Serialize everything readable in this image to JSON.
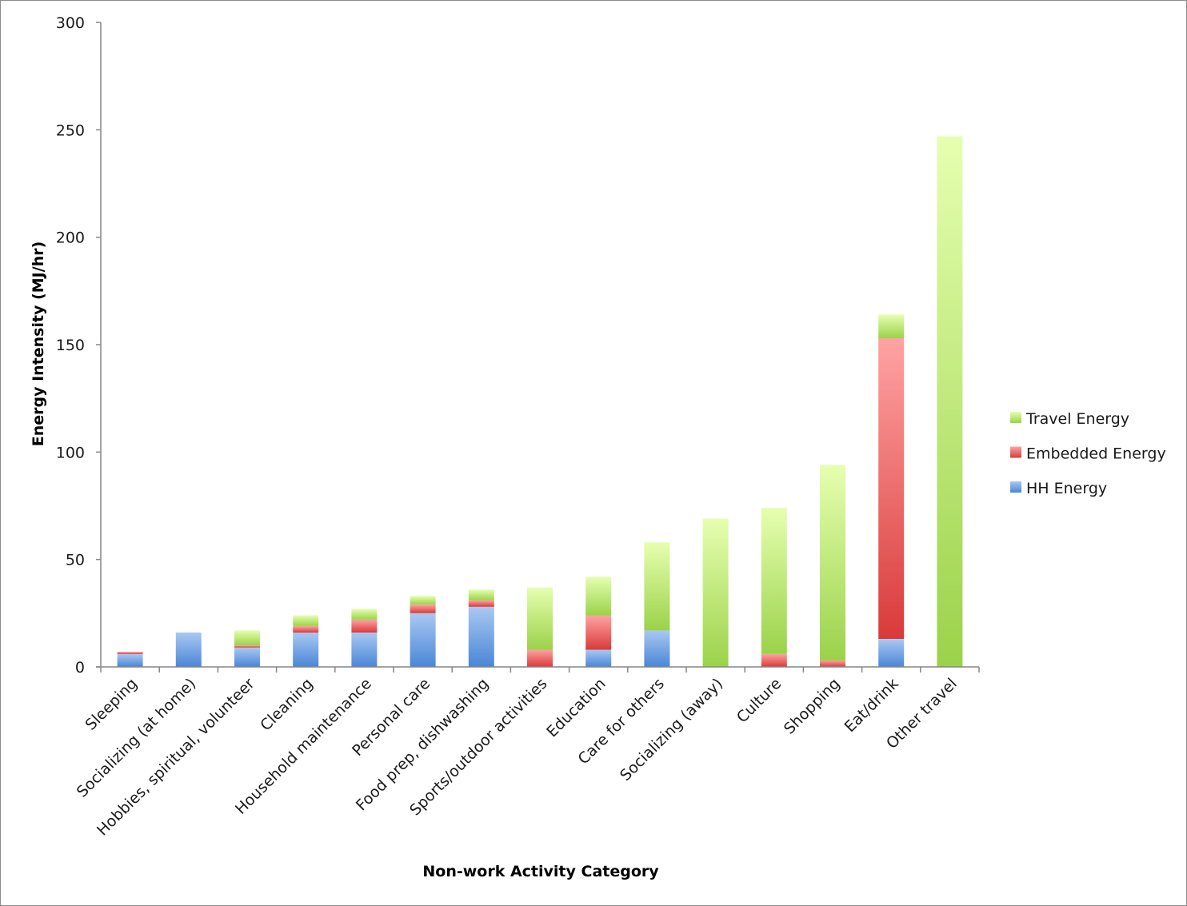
{
  "chart_data": {
    "type": "bar",
    "stacked": true,
    "xlabel": "Non-work Activity Category",
    "ylabel": "Energy Intensity (MJ/hr)",
    "ylim": [
      0,
      300
    ],
    "yticks": [
      0,
      50,
      100,
      150,
      200,
      250,
      300
    ],
    "categories": [
      "Sleeping",
      "Socializing (at home)",
      "Hobbies, spiritual, volunteer",
      "Cleaning",
      "Household maintenance",
      "Personal care",
      "Food prep, dishwashing",
      "Sports/outdoor activities",
      "Education",
      "Care for others",
      "Socializing (away)",
      "Culture",
      "Shopping",
      "Eat/drink",
      "Other travel"
    ],
    "series": [
      {
        "name": "HH Energy",
        "color": "#4a86d6",
        "light": "#a9c8f2",
        "values": [
          6,
          16,
          9,
          16,
          16,
          25,
          28,
          0,
          8,
          17,
          0,
          0,
          0,
          13,
          0
        ]
      },
      {
        "name": "Embedded Energy",
        "color": "#d93a3a",
        "light": "#ffa3a3",
        "values": [
          1,
          0,
          1,
          3,
          6,
          4,
          3,
          8,
          16,
          0,
          0,
          6,
          3,
          140,
          0
        ]
      },
      {
        "name": "Travel Energy",
        "color": "#9bd24a",
        "light": "#e6ffb0",
        "values": [
          0,
          0,
          7,
          5,
          5,
          4,
          5,
          29,
          18,
          41,
          69,
          68,
          91,
          11,
          247
        ]
      }
    ],
    "legend": {
      "position": "right",
      "order": [
        "Travel Energy",
        "Embedded Energy",
        "HH Energy"
      ]
    },
    "grid": false
  }
}
